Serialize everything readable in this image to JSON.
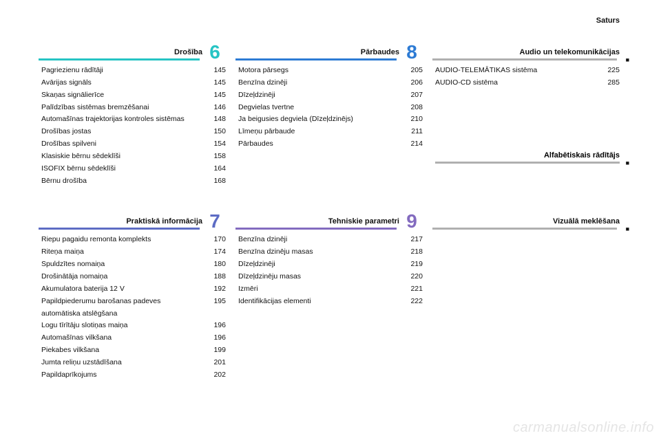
{
  "header": {
    "right": "Saturs"
  },
  "watermark": "carmanualsonline.info",
  "colors": {
    "teal": "#26c4c4",
    "blue": "#2d7bd4",
    "indigo": "#5d6cc4",
    "violet": "#836bbf",
    "gray": "#b0b0b0"
  },
  "sections": [
    {
      "row": 0,
      "col": 0,
      "title": "Drošība",
      "number": "6",
      "number_color": "teal",
      "bar_color": "teal",
      "items": [
        {
          "label": "Pagriezienu rādītāji",
          "page": "145"
        },
        {
          "label": "Avārijas signāls",
          "page": "145"
        },
        {
          "label": "Skaņas signālierīce",
          "page": "145"
        },
        {
          "label": "Palīdzības sistēmas bremzēšanai",
          "page": "146"
        },
        {
          "label": "Automašīnas trajektorijas kontroles sistēmas",
          "page": "148"
        },
        {
          "label": "Drošības jostas",
          "page": "150"
        },
        {
          "label": "Drošības spilveni",
          "page": "154"
        },
        {
          "label": "Klasiskie bērnu sēdeklīši",
          "page": "158"
        },
        {
          "label": "ISOFIX bērnu sēdeklīši",
          "page": "164"
        },
        {
          "label": "Bērnu drošība",
          "page": "168"
        }
      ]
    },
    {
      "row": 0,
      "col": 1,
      "title": "Pārbaudes",
      "number": "8",
      "number_color": "blue",
      "bar_color": "blue",
      "items": [
        {
          "label": "Motora pārsegs",
          "page": "205"
        },
        {
          "label": "Benzīna dzinēji",
          "page": "206"
        },
        {
          "label": "Dīzeļdzinēji",
          "page": "207"
        },
        {
          "label": "Degvielas tvertne",
          "page": "208"
        },
        {
          "label": "Ja beigusies degviela (Dīzeļdzinējs)",
          "page": "210"
        },
        {
          "label": "Līmeņu pārbaude",
          "page": "211"
        },
        {
          "label": "Pārbaudes",
          "page": "214"
        }
      ]
    },
    {
      "row": 0,
      "col": 2,
      "title": "Audio un telekomunikācijas",
      "bar_color": "gray",
      "items": [
        {
          "label": "AUDIO-TELEMĀTIKAS sistēma",
          "page": "225"
        },
        {
          "label": "AUDIO-CD sistēma",
          "page": "285"
        }
      ],
      "footer_title": "Alfabētiskais rādītājs",
      "footer_marker": "■"
    },
    {
      "row": 1,
      "col": 0,
      "title": "Praktiskā informācija",
      "number": "7",
      "number_color": "indigo",
      "bar_color": "indigo",
      "items": [
        {
          "label": "Riepu pagaidu remonta komplekts",
          "page": "170"
        },
        {
          "label": "Riteņa maiņa",
          "page": "174"
        },
        {
          "label": "Spuldzītes nomaiņa",
          "page": "180"
        },
        {
          "label": "Drošinātāja nomaiņa",
          "page": "188"
        },
        {
          "label": "Akumulatora baterija 12 V",
          "page": "192"
        },
        {
          "label": "Papildpiederumu barošanas padeves automātiska atslēgšana",
          "page": "195"
        },
        {
          "label": "Logu tīrītāju slotiņas maiņa",
          "page": "196"
        },
        {
          "label": "Automašīnas vilkšana",
          "page": "196"
        },
        {
          "label": "Piekabes vilkšana",
          "page": "199"
        },
        {
          "label": "Jumta reliņu uzstādīšana",
          "page": "201"
        },
        {
          "label": "Papildaprīkojums",
          "page": "202"
        }
      ]
    },
    {
      "row": 1,
      "col": 1,
      "title": "Tehniskie parametri",
      "number": "9",
      "number_color": "violet",
      "bar_color": "violet",
      "items": [
        {
          "label": "Benzīna dzinēji",
          "page": "217"
        },
        {
          "label": "Benzīna dzinēju masas",
          "page": "218"
        },
        {
          "label": "Dīzeļdzinēji",
          "page": "219"
        },
        {
          "label": "Dīzeļdzinēju masas",
          "page": "220"
        },
        {
          "label": "Izmēri",
          "page": "221"
        },
        {
          "label": "Identifikācijas elementi",
          "page": "222"
        }
      ]
    },
    {
      "row": 1,
      "col": 2,
      "title": "Vizuālā meklēšana",
      "bar_color": "gray",
      "footer_marker": "■",
      "items": []
    }
  ]
}
